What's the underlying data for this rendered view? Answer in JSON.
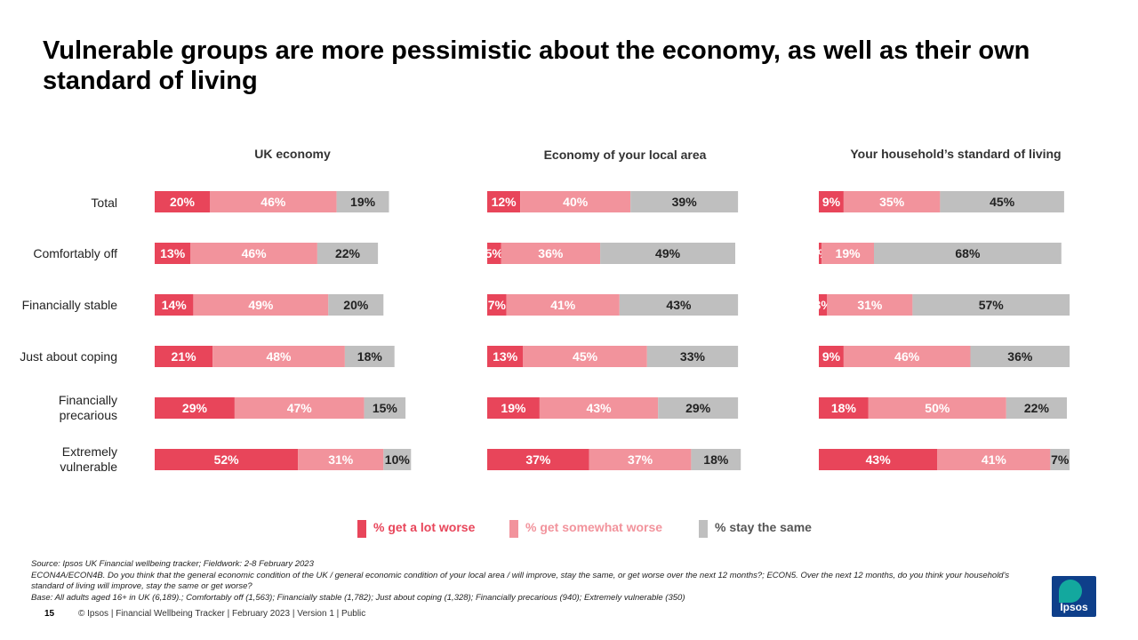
{
  "title": "Vulnerable groups are more pessimistic about the economy, as well as their own standard of living",
  "chart_data": {
    "type": "bar",
    "orientation": "horizontal-stacked",
    "categories": [
      "Total",
      "Comfortably off",
      "Financially stable",
      "Just about coping",
      "Financially precarious",
      "Extremely vulnerable"
    ],
    "legend": [
      "% get a lot worse",
      "% get somewhat worse",
      "% stay the same"
    ],
    "colors": [
      "#e8455a",
      "#f2939c",
      "#bfbfbf"
    ],
    "panels": [
      {
        "title": "UK economy",
        "series": [
          {
            "name": "% get a lot worse",
            "values": [
              20,
              13,
              14,
              21,
              29,
              52
            ]
          },
          {
            "name": "% get somewhat worse",
            "values": [
              46,
              46,
              49,
              48,
              47,
              31
            ]
          },
          {
            "name": "% stay the same",
            "values": [
              19,
              22,
              20,
              18,
              15,
              10
            ]
          }
        ]
      },
      {
        "title": "Economy of your local area",
        "series": [
          {
            "name": "% get a lot worse",
            "values": [
              12,
              5,
              7,
              13,
              19,
              37
            ]
          },
          {
            "name": "% get somewhat worse",
            "values": [
              40,
              36,
              41,
              45,
              43,
              37
            ]
          },
          {
            "name": "% stay the same",
            "values": [
              39,
              49,
              43,
              33,
              29,
              18
            ]
          }
        ]
      },
      {
        "title": "Your household’s standard of living",
        "series": [
          {
            "name": "% get a lot worse",
            "values": [
              9,
              1,
              3,
              9,
              18,
              43
            ]
          },
          {
            "name": "% get somewhat worse",
            "values": [
              35,
              19,
              31,
              46,
              50,
              41
            ]
          },
          {
            "name": "% stay the same",
            "values": [
              45,
              68,
              57,
              36,
              22,
              7
            ]
          }
        ]
      }
    ],
    "value_suffix": "%"
  },
  "category_labels": {
    "total": "Total",
    "comfortably_off": "Comfortably off",
    "financially_stable": "Financially stable",
    "just_about_coping": "Just about coping",
    "financially_precarious_1": "Financially",
    "financially_precarious_2": "precarious",
    "extremely_vulnerable_1": "Extremely",
    "extremely_vulnerable_2": "vulnerable"
  },
  "footnotes": {
    "source": "Source: Ipsos UK Financial wellbeing tracker; Fieldwork: 2-8 February 2023",
    "question": "ECON4A/ECON4B. Do you think that the general economic condition of the UK / general economic condition of your local area / will improve, stay the same, or get worse over the next 12 months?; ECON5. Over the next 12 months, do you think your household's standard of living will improve, stay the same or get worse?",
    "base": "Base: All adults aged 16+ in UK (6,189).; Comfortably off (1,563); Financially stable (1,782); Just about coping (1,328); Financially precarious (940); Extremely vulnerable (350)"
  },
  "footer": {
    "page_number": "15",
    "text": "© Ipsos | Financial Wellbeing Tracker | February 2023 | Version 1 | Public"
  },
  "logo": {
    "text": "Ipsos"
  }
}
